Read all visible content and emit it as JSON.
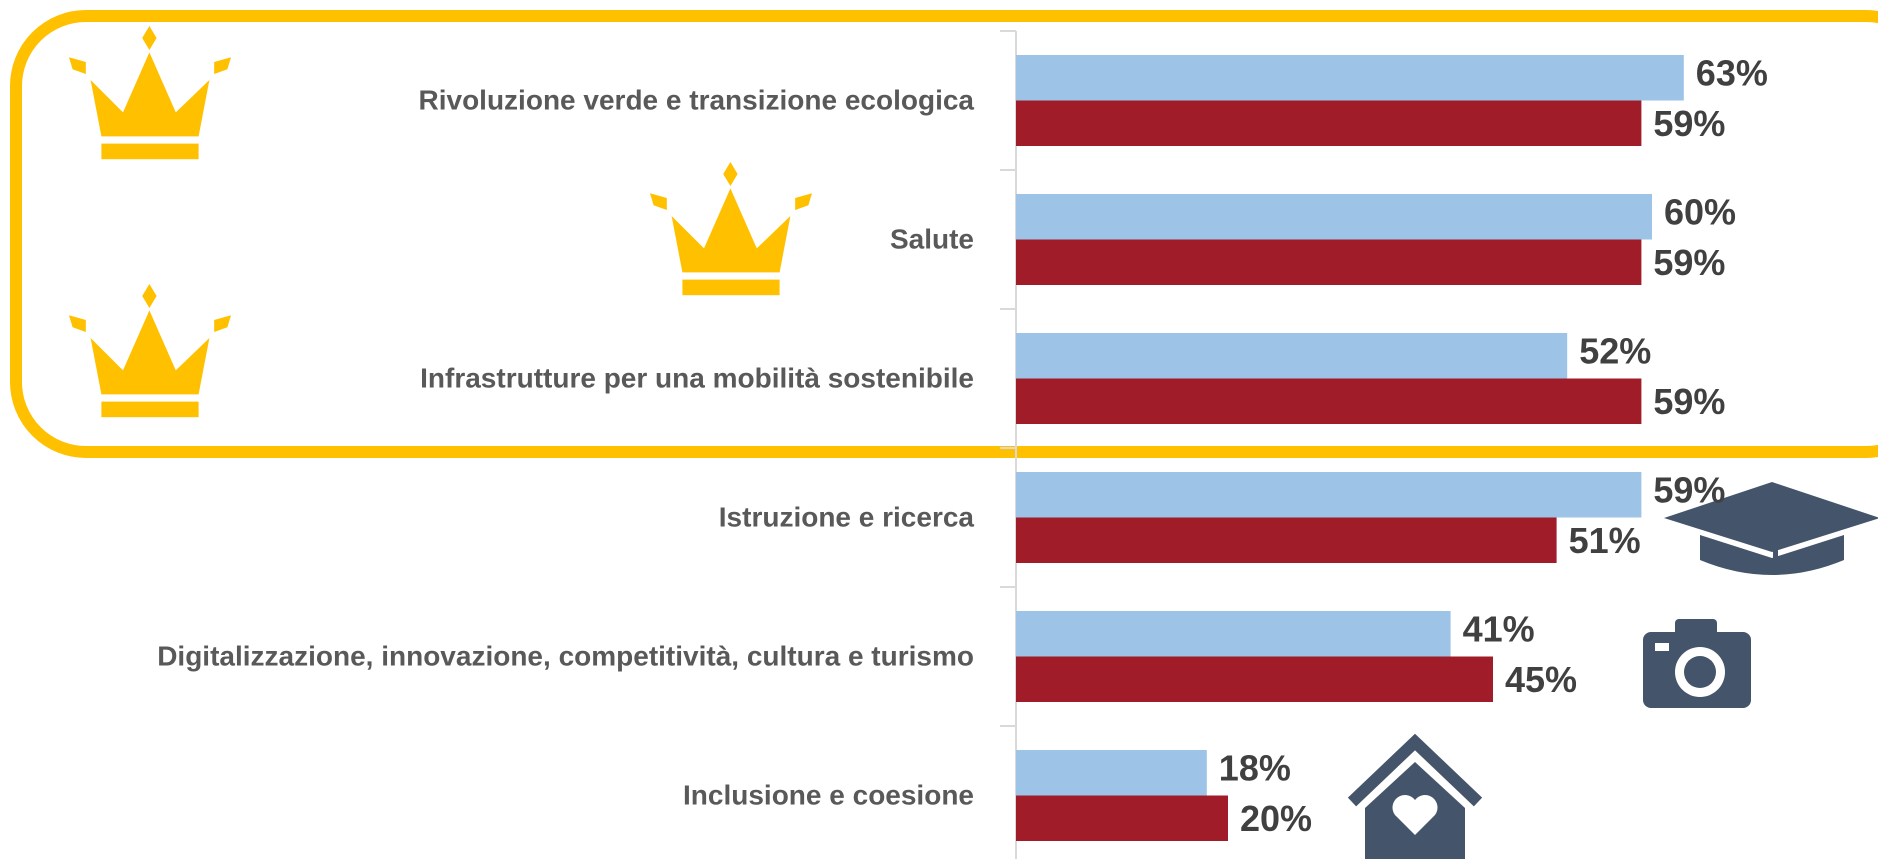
{
  "chart_data": {
    "type": "bar",
    "orientation": "horizontal",
    "categories": [
      "Rivoluzione verde e transizione ecologica",
      "Salute",
      "Infrastrutture per una mobilità sostenibile",
      "Istruzione e ricerca",
      "Digitalizzazione, innovazione, competitività, cultura e turismo",
      "Inclusione e coesione"
    ],
    "series": [
      {
        "color": "#9DC3E6",
        "values": [
          63,
          60,
          52,
          59,
          41,
          18
        ],
        "value_labels": [
          "63%",
          "60%",
          "52%",
          "59%",
          "41%",
          "18%"
        ]
      },
      {
        "color": "#A01C28",
        "values": [
          59,
          59,
          59,
          51,
          45,
          20
        ],
        "value_labels": [
          "59%",
          "59%",
          "59%",
          "51%",
          "45%",
          "20%"
        ]
      }
    ]
  }
}
